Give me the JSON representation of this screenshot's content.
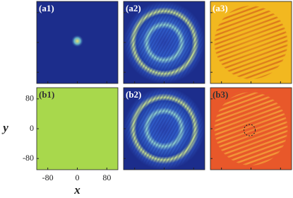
{
  "panels": [
    {
      "label": "(a1)"
    },
    {
      "label": "(a2)"
    },
    {
      "label": "(a3)"
    },
    {
      "label": "(b1)"
    },
    {
      "label": "(b2)"
    },
    {
      "label": "(b3)"
    }
  ],
  "axes": {
    "xlabel": "x",
    "ylabel": "y",
    "xlim": [
      -110,
      110
    ],
    "ylim": [
      -110,
      110
    ],
    "xticks": [
      -80,
      0,
      80
    ],
    "yticks": [
      80,
      0,
      -80
    ]
  }
}
